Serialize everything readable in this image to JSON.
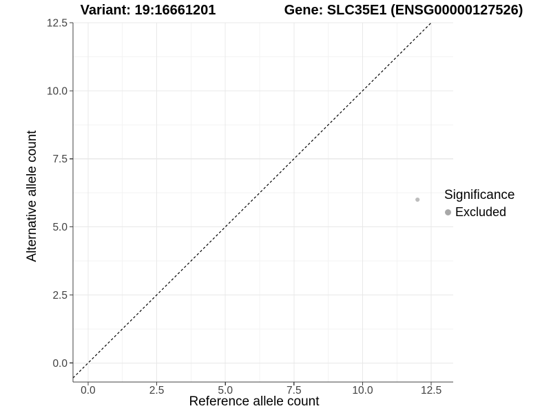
{
  "figure": {
    "title_left": "Variant: 19:16661201",
    "title_right": "Gene: SLC35E1 (ENSG00000127526)"
  },
  "axes": {
    "x_title": "Reference allele count",
    "y_title": "Alternative allele count",
    "x_tick_labels": [
      "0.0",
      "2.5",
      "5.0",
      "7.5",
      "10.0",
      "12.5"
    ],
    "y_tick_labels": [
      "0.0",
      "2.5",
      "5.0",
      "7.5",
      "10.0",
      "12.5"
    ]
  },
  "legend": {
    "title": "Significance",
    "items": [
      {
        "label": "Excluded",
        "marker_color": "#a8a8a8"
      }
    ]
  },
  "chart_data": {
    "type": "scatter",
    "title": "Variant: 19:16661201 | Gene: SLC35E1 (ENSG00000127526)",
    "xlabel": "Reference allele count",
    "ylabel": "Alternative allele count",
    "xlim": [
      -0.55,
      13.3
    ],
    "ylim": [
      -0.7,
      12.5
    ],
    "x_ticks": [
      0,
      2.5,
      5,
      7.5,
      10,
      12.5
    ],
    "y_ticks": [
      0,
      2.5,
      5,
      7.5,
      10,
      12.5
    ],
    "x_minor_ticks": [
      1.25,
      3.75,
      6.25,
      8.75,
      11.25
    ],
    "y_minor_ticks": [
      1.25,
      3.75,
      6.25,
      8.75,
      11.25
    ],
    "grid": "major+minor",
    "legend_position": "right",
    "reference_line": {
      "type": "identity",
      "style": "dashed",
      "from": -0.55,
      "to": 12.5
    },
    "series": [
      {
        "name": "Excluded",
        "color": "#bdbdbd",
        "marker": "circle",
        "points": [
          {
            "x": 12,
            "y": 6
          }
        ]
      }
    ]
  },
  "colors": {
    "background": "#ffffff",
    "grid_major": "#e8e8e8",
    "grid_minor": "#f3f3f3",
    "axis_line": "#404040",
    "tick_mark": "#404040",
    "tick_text": "#404040",
    "title_text": "#000000",
    "identity_line": "#000000",
    "point": "#bdbdbd",
    "legend_key": "#a8a8a8"
  }
}
